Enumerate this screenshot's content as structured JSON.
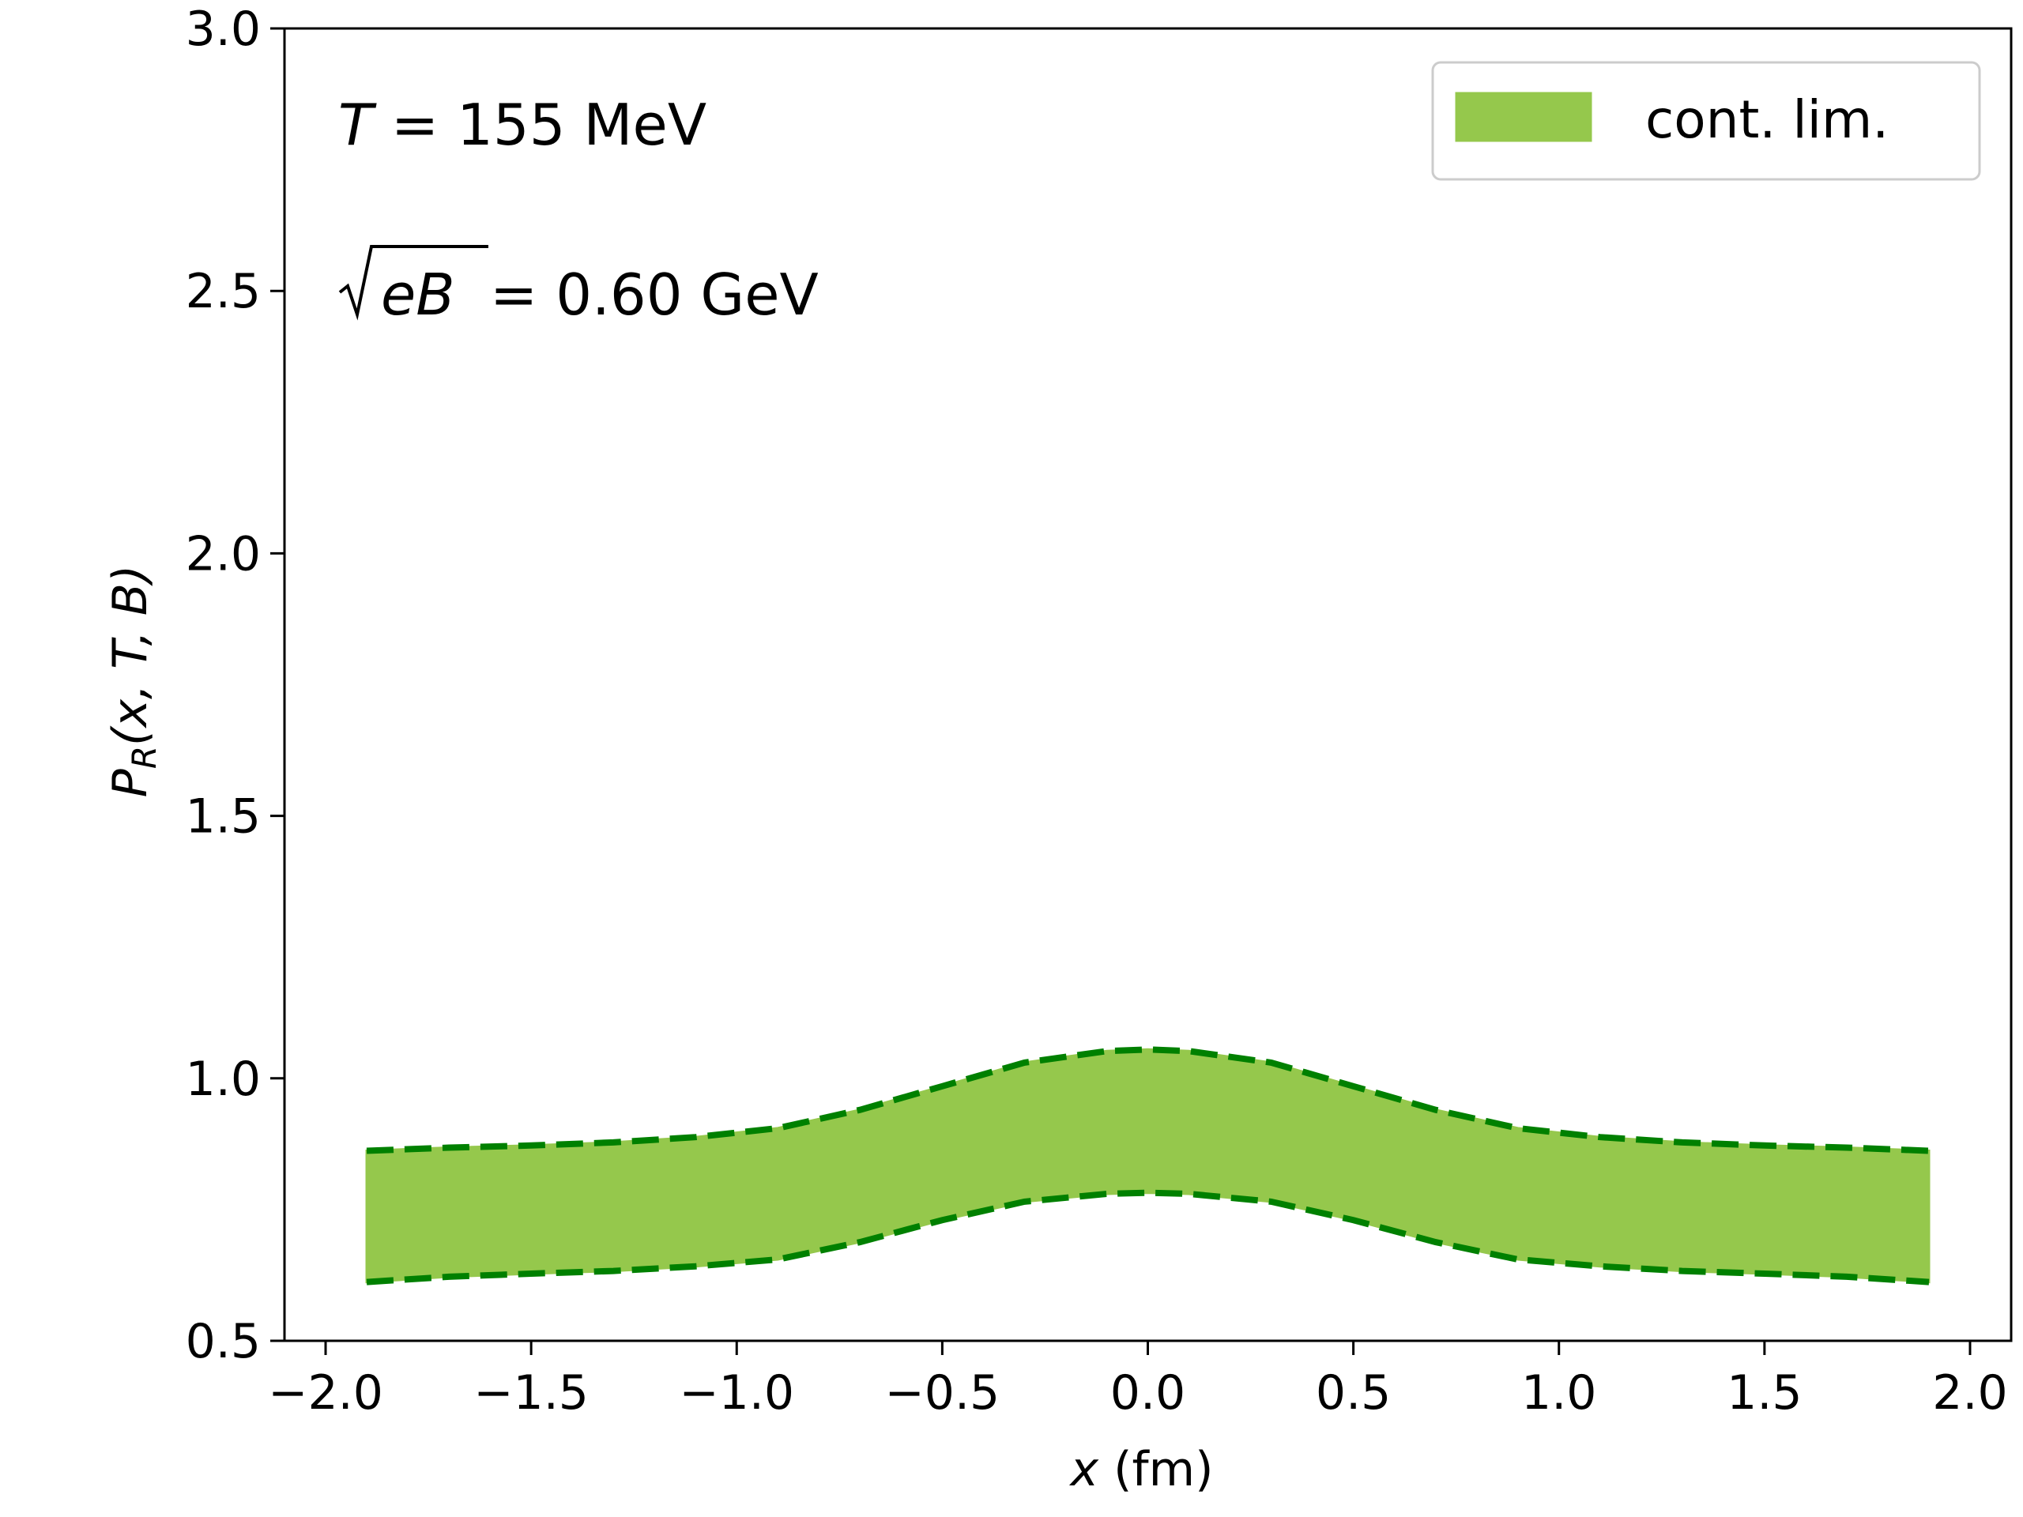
{
  "chart_data": {
    "type": "area",
    "xlabel_var": "x",
    "xlabel_unit": " (fm)",
    "ylabel_var": "P",
    "ylabel_sub": "R",
    "ylabel_args": "(x, T, B)",
    "xlim": [
      -2.1,
      2.1
    ],
    "ylim": [
      0.5,
      3.0
    ],
    "xticks": [
      -2.0,
      -1.5,
      -1.0,
      -0.5,
      0.0,
      0.5,
      1.0,
      1.5,
      2.0
    ],
    "xtick_labels": [
      "−2.0",
      "−1.5",
      "−1.0",
      "−0.5",
      "0.0",
      "0.5",
      "1.0",
      "1.5",
      "2.0"
    ],
    "yticks": [
      0.5,
      1.0,
      1.5,
      2.0,
      2.5,
      3.0
    ],
    "ytick_labels": [
      "0.5",
      "1.0",
      "1.5",
      "2.0",
      "2.5",
      "3.0"
    ],
    "grid": false,
    "legend_position": "top-right",
    "annotations": {
      "temperature": {
        "var": "T",
        "text": " = 155 MeV"
      },
      "field": {
        "var": "eB",
        "text": " = 0.60 GeV"
      }
    },
    "series": [
      {
        "name": "cont. lim.",
        "fill_color": "#95c84c",
        "edge_color": "#008000",
        "x": [
          -1.9,
          -1.7,
          -1.5,
          -1.3,
          -1.1,
          -0.9,
          -0.7,
          -0.5,
          -0.3,
          -0.1,
          0.0,
          0.1,
          0.3,
          0.5,
          0.7,
          0.9,
          1.1,
          1.3,
          1.5,
          1.7,
          1.9
        ],
        "upper": [
          0.862,
          0.868,
          0.872,
          0.878,
          0.888,
          0.905,
          0.94,
          0.985,
          1.03,
          1.052,
          1.055,
          1.052,
          1.03,
          0.985,
          0.94,
          0.905,
          0.888,
          0.878,
          0.872,
          0.868,
          0.862
        ],
        "lower": [
          0.612,
          0.622,
          0.628,
          0.633,
          0.642,
          0.655,
          0.688,
          0.73,
          0.765,
          0.78,
          0.782,
          0.78,
          0.765,
          0.73,
          0.688,
          0.655,
          0.642,
          0.633,
          0.628,
          0.622,
          0.612
        ]
      }
    ]
  }
}
